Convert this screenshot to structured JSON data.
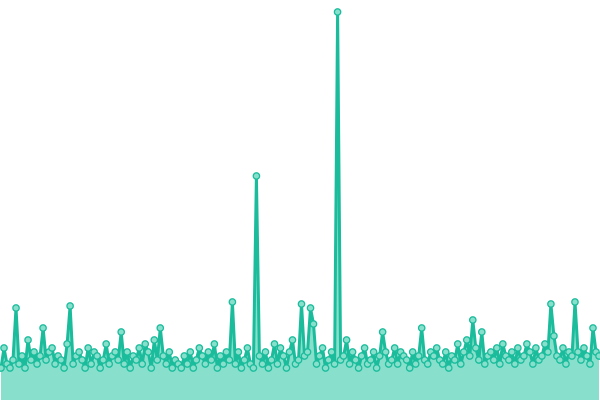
{
  "chart_data": {
    "type": "area",
    "title": "",
    "xlabel": "",
    "ylabel": "",
    "ylim": [
      0,
      100
    ],
    "grid": false,
    "legend": "none",
    "markers": true,
    "colors": {
      "line": "#1abc9c",
      "fill": "#88e0cc",
      "marker_fill": "#88e0cc"
    },
    "values": [
      8,
      13,
      9,
      8,
      10,
      23,
      9,
      11,
      8,
      15,
      10,
      12,
      9,
      11,
      18,
      10,
      12,
      13,
      9,
      11,
      10,
      8,
      14,
      23.5,
      9,
      11,
      12,
      10,
      8,
      13,
      9,
      12,
      11,
      8,
      10,
      14,
      9,
      11,
      12,
      10,
      17,
      9,
      12,
      8,
      11,
      10,
      13,
      9,
      14,
      12,
      8,
      15,
      10,
      18,
      11,
      9,
      12,
      8,
      10,
      9,
      8,
      11,
      9,
      12,
      8,
      10,
      13,
      11,
      9,
      12,
      10,
      14,
      8,
      11,
      9,
      12,
      10,
      24.5,
      9,
      12,
      8,
      10,
      13,
      9,
      8,
      56,
      11,
      9,
      12,
      8,
      10,
      14,
      9,
      13,
      11,
      8,
      12,
      15,
      9,
      10,
      24,
      11,
      12,
      23,
      19,
      9,
      11,
      13,
      8,
      10,
      12,
      9,
      97,
      10,
      11,
      15,
      9,
      12,
      10,
      8,
      11,
      13,
      9,
      10,
      12,
      8,
      11,
      17,
      12,
      9,
      10,
      13,
      9,
      12,
      11,
      10,
      8,
      12,
      9,
      11,
      18,
      10,
      9,
      12,
      11,
      13,
      10,
      9,
      12,
      8,
      11,
      10,
      14,
      9,
      12,
      15,
      11,
      20,
      13,
      10,
      17,
      9,
      11,
      12,
      10,
      13,
      9,
      14,
      11,
      10,
      12,
      9,
      13,
      10,
      11,
      14,
      12,
      9,
      13,
      10,
      11,
      14,
      12,
      24,
      16,
      11,
      10,
      13,
      9,
      12,
      11,
      24.5,
      12,
      10,
      13,
      11,
      9,
      18,
      12,
      11
    ]
  }
}
